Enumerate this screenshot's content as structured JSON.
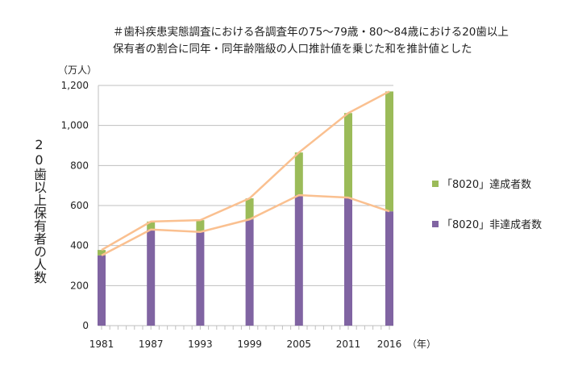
{
  "chart_data": {
    "type": "bar",
    "stacked": true,
    "title": "＃歯科疾患実態調査における各調査年の75～79歳・80～84歳における20歯以上\n保有者の割合に同年・同年齢階級の人口推計値を乗じた和を推計値とした",
    "ylabel": "20歯以上保有者の人数",
    "yunit": "（万人）",
    "xunit": "（年）",
    "ylim": [
      0,
      1200
    ],
    "yticks": [
      "0",
      "200",
      "400",
      "600",
      "800",
      "1,000",
      "1,200"
    ],
    "ytick_values": [
      0,
      200,
      400,
      600,
      800,
      1000,
      1200
    ],
    "grid": true,
    "legend_position": "right",
    "categories": [
      "1981",
      "1987",
      "1993",
      "1999",
      "2005",
      "2011",
      "2016"
    ],
    "x": [
      1981,
      1987,
      1993,
      1999,
      2005,
      2011,
      2016
    ],
    "series": [
      {
        "name": "「8020」非達成者数",
        "color": "#8064a2",
        "values": [
          351,
          480,
          468,
          531,
          652,
          640,
          571
        ]
      },
      {
        "name": "「8020」達成者数",
        "color": "#9bbb59",
        "values": [
          27,
          40,
          59,
          105,
          213,
          422,
          599
        ]
      }
    ],
    "line_color": "#fac090"
  }
}
